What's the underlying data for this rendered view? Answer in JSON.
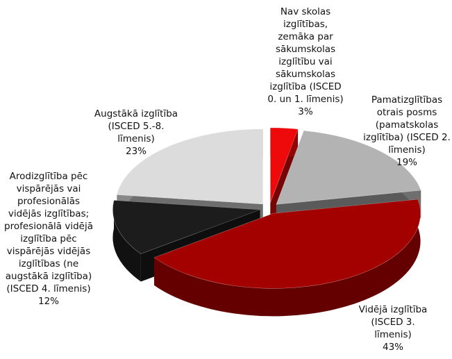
{
  "chart_data": {
    "type": "pie3d",
    "categories": [
      "Nav skolas izglītības, zemāka par sākumskolas izglītību vai sākumskolas izglītība (ISCED 0. un 1. līmenis)",
      "Pamatizglītības otrais posms (pamatskolas izglītība) (ISCED 2. līmenis)",
      "Vidējā izglītība (ISCED 3. līmenis)",
      "Arodizglītība pēc vispārējās vai profesionālās vidējās izglītības; profesionālā vidējā izglītība pēc vispārējās vidējās izglītības (ne augstākā izglītība) (ISCED 4. līmenis)",
      "Augstākā izglītība (ISCED 5.-8. līmenis)"
    ],
    "values": [
      3,
      19,
      43,
      12,
      23
    ],
    "value_labels": [
      "3%",
      "19%",
      "43%",
      "12%",
      "23%"
    ],
    "colors": [
      "#ee0a0a",
      "#b3b3b3",
      "#a30000",
      "#1c1c1c",
      "#dcdcdc"
    ]
  }
}
